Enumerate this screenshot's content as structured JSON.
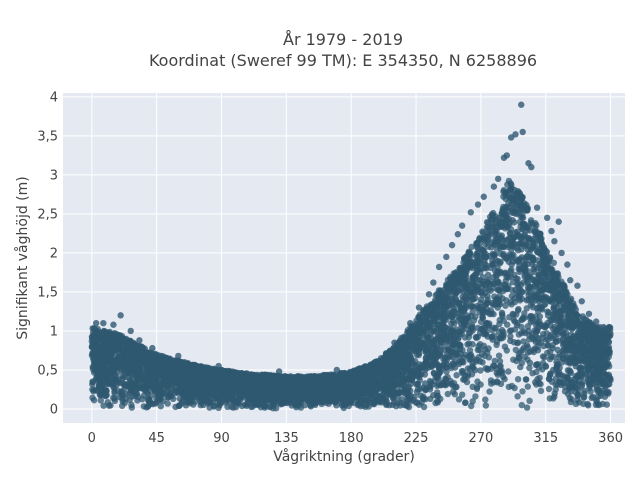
{
  "chart_data": {
    "type": "scatter",
    "title_line1": "År 1979 - 2019",
    "title_line2": "Koordinat (Sweref 99 TM): E 354350, N 6258896",
    "xlabel": "Vågriktning (grader)",
    "ylabel": "Signifikant våghöjd (m)",
    "xlim": [
      -20,
      370
    ],
    "ylim": [
      -0.18,
      4.05
    ],
    "x_ticks": [
      0,
      45,
      90,
      135,
      180,
      225,
      270,
      315,
      360
    ],
    "x_tick_labels": [
      "0",
      "45",
      "90",
      "135",
      "180",
      "225",
      "270",
      "315",
      "360"
    ],
    "y_ticks": [
      0,
      0.5,
      1,
      1.5,
      2,
      2.5,
      3,
      3.5,
      4
    ],
    "y_tick_labels": [
      "0",
      "0,5",
      "1",
      "1,5",
      "2",
      "2,5",
      "3",
      "3,5",
      "4"
    ],
    "grid": true,
    "colors": {
      "marker": "#2f5870",
      "plot_bg": "#e5e9f2",
      "grid": "#ffffff"
    },
    "envelope": [
      {
        "x": 0,
        "y": 1.05
      },
      {
        "x": 10,
        "y": 1.0
      },
      {
        "x": 20,
        "y": 0.95
      },
      {
        "x": 30,
        "y": 0.85
      },
      {
        "x": 45,
        "y": 0.7
      },
      {
        "x": 60,
        "y": 0.62
      },
      {
        "x": 75,
        "y": 0.55
      },
      {
        "x": 90,
        "y": 0.5
      },
      {
        "x": 105,
        "y": 0.46
      },
      {
        "x": 120,
        "y": 0.44
      },
      {
        "x": 135,
        "y": 0.42
      },
      {
        "x": 150,
        "y": 0.42
      },
      {
        "x": 165,
        "y": 0.44
      },
      {
        "x": 180,
        "y": 0.48
      },
      {
        "x": 195,
        "y": 0.58
      },
      {
        "x": 210,
        "y": 0.8
      },
      {
        "x": 225,
        "y": 1.15
      },
      {
        "x": 240,
        "y": 1.5
      },
      {
        "x": 255,
        "y": 1.85
      },
      {
        "x": 270,
        "y": 2.25
      },
      {
        "x": 280,
        "y": 2.6
      },
      {
        "x": 290,
        "y": 2.95
      },
      {
        "x": 300,
        "y": 2.7
      },
      {
        "x": 310,
        "y": 2.3
      },
      {
        "x": 320,
        "y": 1.9
      },
      {
        "x": 330,
        "y": 1.5
      },
      {
        "x": 340,
        "y": 1.2
      },
      {
        "x": 350,
        "y": 1.05
      },
      {
        "x": 360,
        "y": 1.05
      }
    ],
    "points": [
      {
        "x": 298,
        "y": 3.9
      },
      {
        "x": 294,
        "y": 3.52
      },
      {
        "x": 299,
        "y": 3.55
      },
      {
        "x": 291,
        "y": 3.48
      },
      {
        "x": 286,
        "y": 3.22
      },
      {
        "x": 288,
        "y": 3.25
      },
      {
        "x": 303,
        "y": 3.15
      },
      {
        "x": 305,
        "y": 3.1
      },
      {
        "x": 282,
        "y": 2.95
      },
      {
        "x": 279,
        "y": 2.85
      },
      {
        "x": 272,
        "y": 2.72
      },
      {
        "x": 268,
        "y": 2.62
      },
      {
        "x": 263,
        "y": 2.52
      },
      {
        "x": 257,
        "y": 2.35
      },
      {
        "x": 254,
        "y": 2.24
      },
      {
        "x": 250,
        "y": 2.1
      },
      {
        "x": 246,
        "y": 1.95
      },
      {
        "x": 241,
        "y": 1.82
      },
      {
        "x": 237,
        "y": 1.62
      },
      {
        "x": 234,
        "y": 1.47
      },
      {
        "x": 227,
        "y": 1.3
      },
      {
        "x": 221,
        "y": 1.1
      },
      {
        "x": 309,
        "y": 2.58
      },
      {
        "x": 316,
        "y": 2.45
      },
      {
        "x": 319,
        "y": 2.28
      },
      {
        "x": 324,
        "y": 2.4
      },
      {
        "x": 321,
        "y": 2.15
      },
      {
        "x": 326,
        "y": 2.0
      },
      {
        "x": 330,
        "y": 1.85
      },
      {
        "x": 332,
        "y": 1.65
      },
      {
        "x": 337,
        "y": 1.58
      },
      {
        "x": 340,
        "y": 1.38
      },
      {
        "x": 345,
        "y": 1.22
      },
      {
        "x": 350,
        "y": 1.12
      },
      {
        "x": 355,
        "y": 1.05
      },
      {
        "x": 359,
        "y": 1.05
      },
      {
        "x": 20,
        "y": 1.2
      },
      {
        "x": 15,
        "y": 1.08
      },
      {
        "x": 3,
        "y": 1.1
      },
      {
        "x": 8,
        "y": 1.1
      },
      {
        "x": 27,
        "y": 1.0
      },
      {
        "x": 33,
        "y": 0.88
      },
      {
        "x": 42,
        "y": 0.78
      },
      {
        "x": 60,
        "y": 0.68
      },
      {
        "x": 88,
        "y": 0.55
      },
      {
        "x": 130,
        "y": 0.48
      },
      {
        "x": 170,
        "y": 0.5
      },
      {
        "x": 210,
        "y": 0.85
      }
    ]
  }
}
